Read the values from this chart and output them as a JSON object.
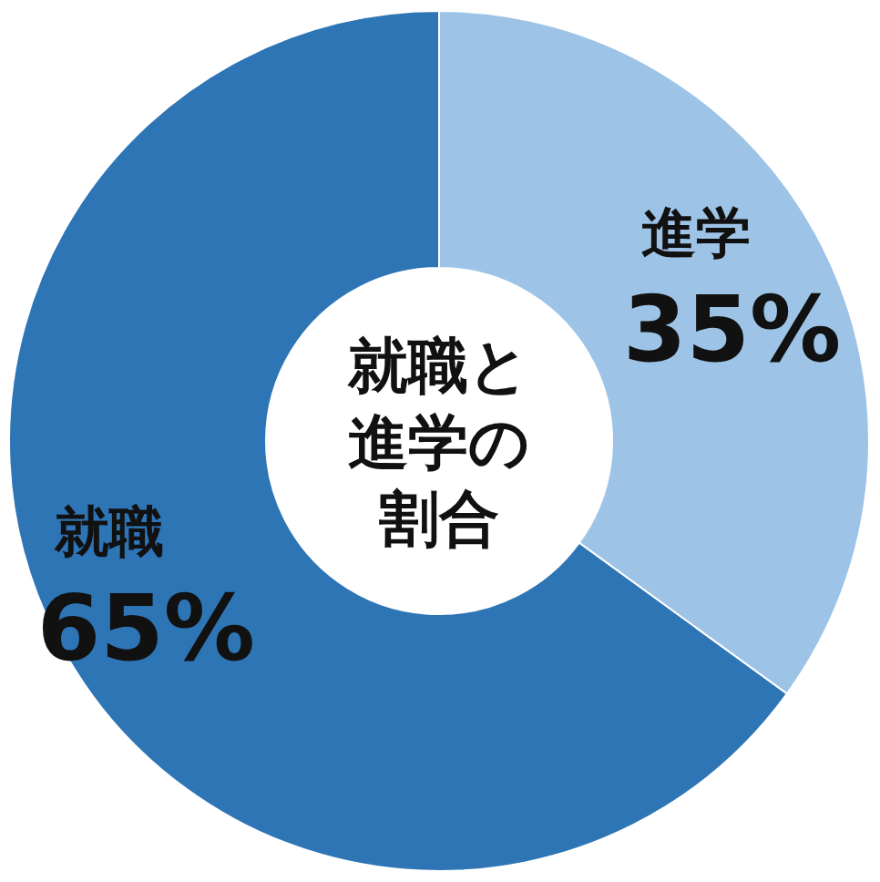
{
  "chart_data": {
    "type": "donut",
    "title": "就職と進学の割合",
    "categories": [
      "進学",
      "就職"
    ],
    "values": [
      35,
      65
    ],
    "value_labels": [
      "35%",
      "65%"
    ],
    "colors": [
      "#9dc3e6",
      "#2e75b6"
    ]
  }
}
